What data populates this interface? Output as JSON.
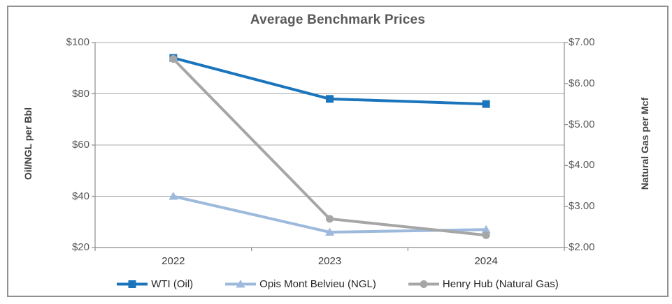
{
  "chart_data": {
    "type": "line",
    "title": "Average Benchmark Prices",
    "categories": [
      "2022",
      "2023",
      "2024"
    ],
    "left_axis": {
      "title": "Oil/NGL per Bbl",
      "lim": [
        20,
        100
      ],
      "tick_values": [
        100,
        80,
        60,
        40,
        20
      ],
      "tick_labels": [
        "$100",
        "$80",
        "$60",
        "$40",
        "$20"
      ]
    },
    "right_axis": {
      "title": "Natural Gas per Mcf",
      "lim": [
        2,
        7
      ],
      "tick_values": [
        7,
        6,
        5,
        4,
        3,
        2
      ],
      "tick_labels": [
        "$7.00",
        "$6.00",
        "$5.00",
        "$4.00",
        "$3.00",
        "$2.00"
      ]
    },
    "series": [
      {
        "name": "WTI (Oil)",
        "axis": "left",
        "marker": "square",
        "color": "#1B75BC",
        "values": [
          94,
          78,
          76
        ]
      },
      {
        "name": "Opis Mont Belvieu (NGL)",
        "axis": "left",
        "marker": "triangle",
        "color": "#9DB9DC",
        "values": [
          40,
          26,
          27
        ]
      },
      {
        "name": "Henry Hub (Natural Gas)",
        "axis": "right",
        "marker": "circle",
        "color": "#A6A6A6",
        "values": [
          6.6,
          2.7,
          2.3
        ]
      }
    ],
    "grid": true,
    "legend_position": "bottom"
  },
  "colors": {
    "title_text": "#595959",
    "tick_text": "#595959",
    "label_text": "#3A3A3A",
    "gridline": "#A9A9A9",
    "axis_line": "#8C8C8C",
    "frame_border": "#919191",
    "background": "#FFFFFF"
  }
}
